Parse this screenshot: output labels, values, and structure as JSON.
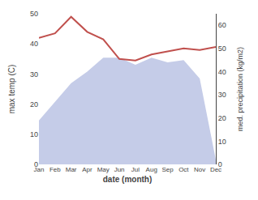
{
  "chart_data": {
    "type": "line",
    "xlabel": "date (month)",
    "ylabel": "max temp (C)",
    "y2label": "med. precipitation (kg/m2)",
    "categories": [
      "Jan",
      "Feb",
      "Mar",
      "Apr",
      "May",
      "Jun",
      "Jul",
      "Aug",
      "Sep",
      "Oct",
      "Nov",
      "Dec"
    ],
    "series": [
      {
        "type": "area",
        "axis": "y2",
        "color": "#c5cce8",
        "values": [
          19,
          27,
          35,
          40,
          46,
          46,
          43,
          46,
          44,
          45,
          37,
          2
        ]
      },
      {
        "type": "line",
        "color": "#c0504d",
        "values": [
          42.0,
          43.5,
          49.0,
          44.0,
          41.5,
          35.0,
          34.5,
          36.5,
          37.5,
          38.5,
          38.0,
          39.0
        ]
      }
    ],
    "ylim": [
      0,
      50
    ],
    "yticks": [
      0,
      10,
      20,
      30,
      40,
      50
    ],
    "y2lim": [
      0,
      65
    ],
    "y2ticks": [
      0,
      10,
      20,
      30,
      40,
      50,
      60
    ],
    "grid": false
  }
}
